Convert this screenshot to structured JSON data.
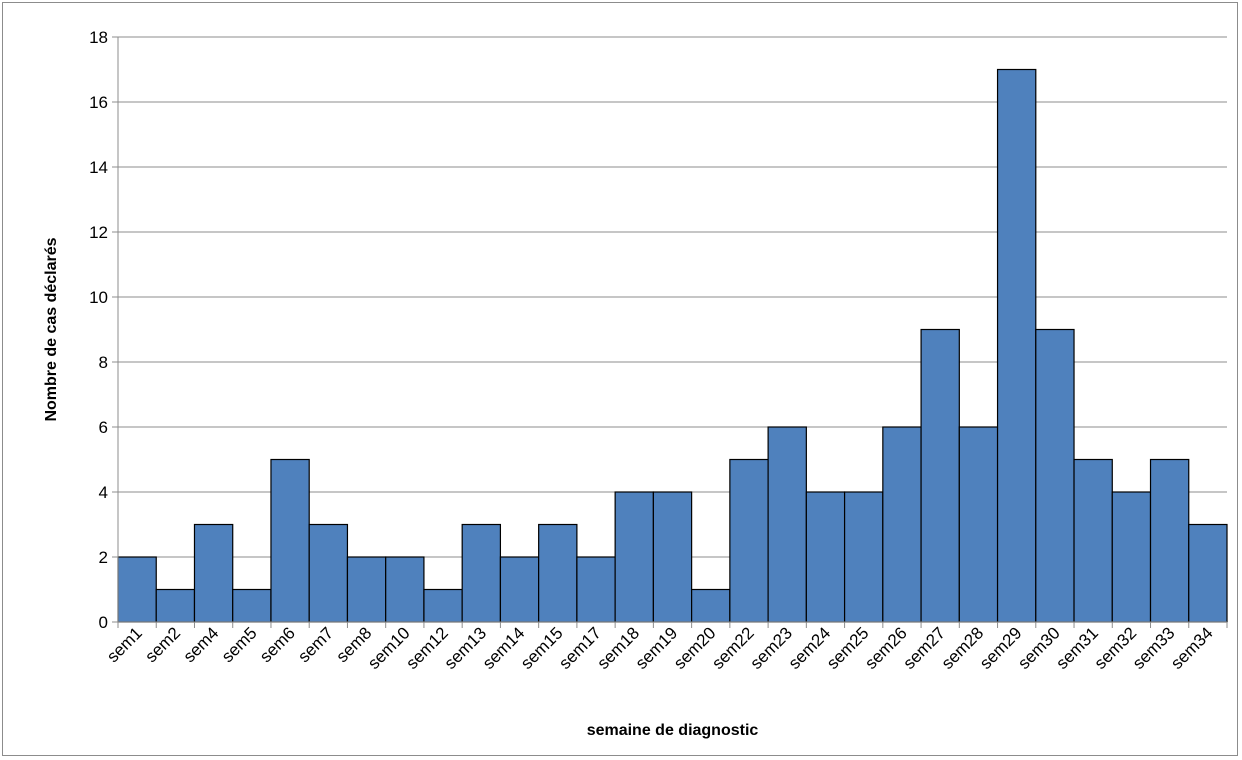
{
  "chart_data": {
    "type": "bar",
    "title": "",
    "xlabel": "semaine de diagnostic",
    "ylabel": "Nombre de cas déclarés",
    "ylim": [
      0,
      18
    ],
    "y_ticks": [
      "0",
      "2",
      "4",
      "6",
      "8",
      "10",
      "12",
      "14",
      "16",
      "18"
    ],
    "grid": "horizontal",
    "legend": "none",
    "bar_color": "#4f81bd",
    "bar_edge_color": "#000000",
    "categories": [
      "sem1",
      "sem2",
      "sem4",
      "sem5",
      "sem6",
      "sem7",
      "sem8",
      "sem10",
      "sem12",
      "sem13",
      "sem14",
      "sem15",
      "sem17",
      "sem18",
      "sem19",
      "sem20",
      "sem22",
      "sem23",
      "sem24",
      "sem25",
      "sem26",
      "sem27",
      "sem28",
      "sem29",
      "sem30",
      "sem31",
      "sem32",
      "sem33",
      "sem34"
    ],
    "values": [
      2,
      1,
      3,
      1,
      5,
      3,
      2,
      2,
      1,
      3,
      2,
      3,
      2,
      4,
      4,
      1,
      5,
      6,
      4,
      4,
      6,
      9,
      6,
      17,
      9,
      5,
      4,
      5,
      3
    ]
  }
}
